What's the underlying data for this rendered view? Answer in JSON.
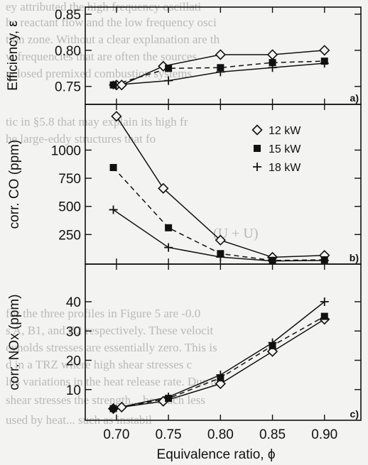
{
  "background_text": [
    "ey attributed the high frequency oscillati",
    "he reactant flow and the low frequency osci",
    "tion zone. Without a clear explanation are th",
    "w frequencies that are often the sources",
    "nclosed premixed combustion systems.",
    "tic in §5.8 that may explain its high fr",
    "he large-eddy structures that fo",
    "(U + U)",
    "for the three profiles in Figure 5 are -0.0",
    "s A, B1, and B2 respectively. These velocit",
    "eynolds stresses are essentially zero. This is",
    "d in a TRZ where high shear stresses c",
    "lus variations in the heat release rate. Due to",
    "shear stresses the strength... be much less",
    "used by heat... such as instabil"
  ],
  "chart_data": [
    {
      "type": "line",
      "panel_label": "a)",
      "ylabel": "Efficiency, ε",
      "ylim": [
        0.735,
        0.85
      ],
      "yticks": [
        "0.75",
        "0.80",
        "0.85"
      ],
      "yticks_values": [
        0.75,
        0.8,
        0.85
      ],
      "series": [
        {
          "name": "12 kW",
          "x": [
            0.7,
            0.705,
            0.745,
            0.8,
            0.85,
            0.9
          ],
          "values": [
            0.752,
            0.752,
            0.778,
            0.794,
            0.794,
            0.8
          ]
        },
        {
          "name": "15 kW",
          "x": [
            0.697,
            0.75,
            0.8,
            0.85,
            0.9
          ],
          "values": [
            0.752,
            0.775,
            0.776,
            0.783,
            0.785
          ]
        },
        {
          "name": "18 kW",
          "x": [
            0.697,
            0.75,
            0.8,
            0.85,
            0.9
          ],
          "values": [
            0.752,
            0.758,
            0.77,
            0.776,
            0.782
          ]
        }
      ]
    },
    {
      "type": "line",
      "panel_label": "b)",
      "ylabel": "corr. CO (ppm)",
      "ylim": [
        0,
        1280
      ],
      "yticks": [
        "250",
        "500",
        "750",
        "1000"
      ],
      "yticks_values": [
        250,
        500,
        750,
        1000
      ],
      "series": [
        {
          "name": "12 kW",
          "x": [
            0.7,
            0.745,
            0.8,
            0.85,
            0.9
          ],
          "values": [
            1300,
            660,
            200,
            48,
            65
          ]
        },
        {
          "name": "15 kW",
          "x": [
            0.697,
            0.75,
            0.8,
            0.85,
            0.9
          ],
          "values": [
            845,
            310,
            80,
            20,
            25
          ]
        },
        {
          "name": "18 kW",
          "x": [
            0.697,
            0.75,
            0.8,
            0.85,
            0.9
          ],
          "values": [
            470,
            135,
            50,
            15,
            20
          ]
        }
      ],
      "legend": {
        "placement": "top-right",
        "entries": [
          {
            "label": "12 kW",
            "marker": "diamond"
          },
          {
            "label": "15 kW",
            "marker": "square"
          },
          {
            "label": "18 kW",
            "marker": "plus"
          }
        ]
      }
    },
    {
      "type": "line",
      "panel_label": "c)",
      "ylabel": "corr. NOx (ppm)",
      "ylim": [
        0,
        48
      ],
      "yticks": [
        "10",
        "20",
        "30",
        "40"
      ],
      "yticks_values": [
        10,
        20,
        30,
        40
      ],
      "xlabel": "Equivalence ratio, ϕ",
      "xlim": [
        0.67,
        0.935
      ],
      "xticks": [
        "0.70",
        "0.75",
        "0.80",
        "0.85",
        "0.90"
      ],
      "xticks_values": [
        0.7,
        0.75,
        0.8,
        0.85,
        0.9
      ],
      "series": [
        {
          "name": "12 kW",
          "x": [
            0.697,
            0.705,
            0.745,
            0.8,
            0.85,
            0.9
          ],
          "values": [
            3.5,
            4,
            6,
            12,
            23,
            34
          ]
        },
        {
          "name": "15 kW",
          "x": [
            0.697,
            0.75,
            0.8,
            0.85,
            0.9
          ],
          "values": [
            3.5,
            7,
            14,
            25,
            35
          ]
        },
        {
          "name": "18 kW",
          "x": [
            0.697,
            0.75,
            0.8,
            0.85,
            0.9
          ],
          "values": [
            3.5,
            7.5,
            15,
            26,
            40
          ]
        }
      ]
    }
  ]
}
